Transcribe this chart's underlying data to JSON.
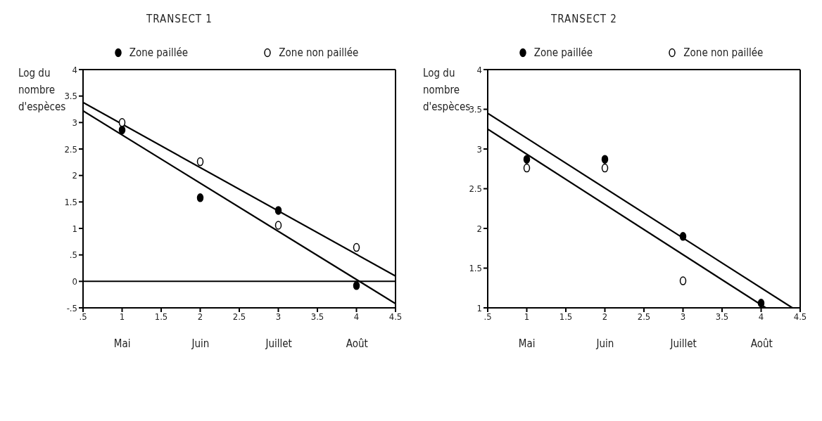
{
  "chart_data": [
    {
      "type": "scatter",
      "title": "TRANSECT  1",
      "ylabel": "Log du nombre d'espèces",
      "legend": "top",
      "marker": "circle",
      "line_style": "solid",
      "grid": false,
      "x": [
        1,
        2,
        3,
        4
      ],
      "series": [
        {
          "name": "Zone paillée",
          "color": "#000000",
          "values": [
            2.86,
            1.58,
            1.34,
            -0.08
          ]
        },
        {
          "name": "Zone non paillée",
          "color": "#ffffff",
          "values": [
            3.0,
            2.26,
            1.06,
            0.64
          ]
        },
        {
          "type": "line",
          "marker": "none",
          "color": "#000000",
          "x": [
            0.5,
            4.5
          ],
          "values": [
            3.38,
            0.1
          ]
        },
        {
          "type": "line",
          "marker": "none",
          "color": "#000000",
          "x": [
            0.5,
            4.5
          ],
          "values": [
            3.22,
            -0.42
          ]
        }
      ],
      "ref_lines": [
        {
          "axis": "y",
          "value": 0,
          "color": "#000000"
        }
      ],
      "annotations": [
        "Mai",
        "Juin",
        "Juillet",
        "Août"
      ],
      "xlim": [
        0.5,
        4.5
      ],
      "xticks": [
        {
          "value": 0.5,
          "label": ".5"
        },
        1,
        1.5,
        2,
        2.5,
        3,
        3.5,
        4,
        4.5
      ],
      "ylim": [
        -0.5,
        4
      ],
      "yticks": [
        {
          "value": -0.5,
          "label": "-.5"
        },
        0,
        {
          "value": 0.5,
          "label": ".5"
        },
        1,
        1.5,
        2,
        2.5,
        3,
        3.5,
        4
      ]
    },
    {
      "type": "scatter",
      "title": "TRANSECT  2",
      "ylabel": "Log du nombre d'espèces",
      "legend": "top",
      "marker": "circle",
      "line_style": "solid",
      "grid": false,
      "x": [
        1,
        2,
        3,
        4
      ],
      "series": [
        {
          "name": "Zone paillée",
          "color": "#000000",
          "values": [
            2.87,
            2.87,
            1.9,
            1.06
          ]
        },
        {
          "name": "Zone non paillée",
          "color": "#ffffff",
          "values": [
            2.76,
            2.76,
            1.34,
            null
          ]
        },
        {
          "type": "line",
          "marker": "none",
          "color": "#000000",
          "x": [
            0.5,
            4.4
          ],
          "values": [
            3.45,
            1.0
          ]
        },
        {
          "type": "line",
          "marker": "none",
          "color": "#000000",
          "x": [
            0.5,
            4.06
          ],
          "values": [
            3.25,
            1.0
          ]
        }
      ],
      "annotations": [
        "Mai",
        "Juin",
        "Juillet",
        "Août"
      ],
      "xlim": [
        0.5,
        4.5
      ],
      "xticks": [
        {
          "value": 0.5,
          "label": ".5"
        },
        1,
        1.5,
        2,
        2.5,
        3,
        3.5,
        4,
        4.5
      ],
      "ylim": [
        1,
        4
      ],
      "yticks": [
        1,
        1.5,
        2,
        2.5,
        3,
        3.5,
        4
      ]
    }
  ]
}
